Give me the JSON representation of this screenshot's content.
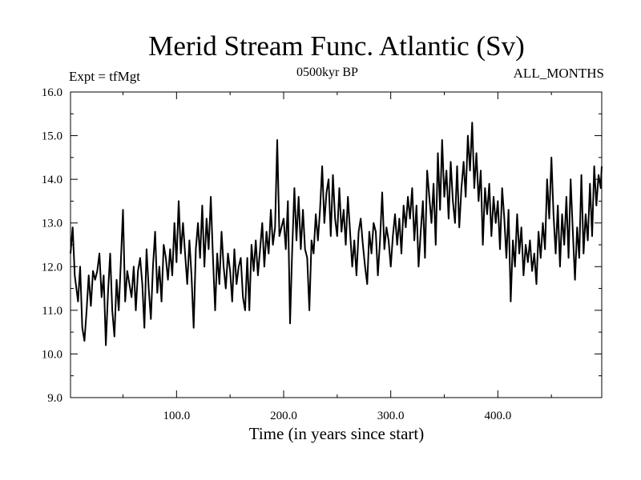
{
  "chart_data": {
    "type": "line",
    "title": "Merid Stream Func. Atlantic (Sv)",
    "subtitle": "0500kyr BP",
    "top_left_label": "Expt = tfMgt",
    "top_right_label": "ALL_MONTHS",
    "xlabel": "Time (in years since start)",
    "ylabel": "",
    "xlim": [
      1,
      497
    ],
    "ylim": [
      9.0,
      16.0
    ],
    "x_ticks": [
      "100.0",
      "200.0",
      "300.0",
      "400.0"
    ],
    "y_ticks": [
      "9.0",
      "10.0",
      "11.0",
      "12.0",
      "13.0",
      "14.0",
      "15.0",
      "16.0"
    ],
    "grid": false,
    "series": [
      {
        "points": [
          [
            1,
            12.3
          ],
          [
            3,
            12.9
          ],
          [
            5,
            11.8
          ],
          [
            8,
            11.2
          ],
          [
            10,
            12.0
          ],
          [
            12,
            10.6
          ],
          [
            14,
            10.3
          ],
          [
            16,
            11.0
          ],
          [
            18,
            11.8
          ],
          [
            20,
            11.1
          ],
          [
            22,
            11.9
          ],
          [
            24,
            11.7
          ],
          [
            26,
            11.9
          ],
          [
            28,
            12.3
          ],
          [
            30,
            11.3
          ],
          [
            32,
            11.8
          ],
          [
            34,
            10.2
          ],
          [
            36,
            11.4
          ],
          [
            38,
            12.3
          ],
          [
            40,
            11.0
          ],
          [
            42,
            10.4
          ],
          [
            44,
            11.7
          ],
          [
            46,
            11.0
          ],
          [
            48,
            12.1
          ],
          [
            50,
            13.3
          ],
          [
            52,
            11.2
          ],
          [
            54,
            11.9
          ],
          [
            56,
            11.6
          ],
          [
            58,
            11.3
          ],
          [
            60,
            12.0
          ],
          [
            62,
            11.0
          ],
          [
            64,
            11.9
          ],
          [
            66,
            12.2
          ],
          [
            68,
            11.6
          ],
          [
            70,
            10.6
          ],
          [
            72,
            12.4
          ],
          [
            74,
            11.5
          ],
          [
            76,
            10.8
          ],
          [
            78,
            12.0
          ],
          [
            80,
            12.8
          ],
          [
            82,
            11.4
          ],
          [
            84,
            12.0
          ],
          [
            86,
            11.2
          ],
          [
            88,
            12.5
          ],
          [
            90,
            12.2
          ],
          [
            92,
            11.7
          ],
          [
            94,
            12.4
          ],
          [
            96,
            11.8
          ],
          [
            98,
            13.0
          ],
          [
            100,
            12.1
          ],
          [
            102,
            13.5
          ],
          [
            104,
            12.3
          ],
          [
            106,
            13.0
          ],
          [
            108,
            12.3
          ],
          [
            110,
            11.6
          ],
          [
            112,
            12.6
          ],
          [
            114,
            11.8
          ],
          [
            116,
            10.6
          ],
          [
            118,
            12.4
          ],
          [
            120,
            13.0
          ],
          [
            122,
            12.2
          ],
          [
            124,
            13.4
          ],
          [
            126,
            12.0
          ],
          [
            128,
            13.1
          ],
          [
            130,
            12.4
          ],
          [
            132,
            13.6
          ],
          [
            134,
            12.2
          ],
          [
            136,
            11.0
          ],
          [
            138,
            12.3
          ],
          [
            140,
            11.6
          ],
          [
            142,
            12.8
          ],
          [
            144,
            12.0
          ],
          [
            146,
            11.5
          ],
          [
            148,
            12.3
          ],
          [
            150,
            11.9
          ],
          [
            152,
            11.2
          ],
          [
            154,
            12.4
          ],
          [
            156,
            11.6
          ],
          [
            158,
            12.0
          ],
          [
            160,
            12.2
          ],
          [
            162,
            11.3
          ],
          [
            164,
            11.0
          ],
          [
            166,
            12.2
          ],
          [
            168,
            11.0
          ],
          [
            170,
            12.5
          ],
          [
            172,
            11.9
          ],
          [
            174,
            12.6
          ],
          [
            176,
            11.8
          ],
          [
            178,
            12.4
          ],
          [
            180,
            13.0
          ],
          [
            182,
            12.0
          ],
          [
            184,
            12.8
          ],
          [
            186,
            12.3
          ],
          [
            188,
            13.3
          ],
          [
            190,
            12.5
          ],
          [
            192,
            12.9
          ],
          [
            194,
            14.9
          ],
          [
            196,
            12.7
          ],
          [
            198,
            12.9
          ],
          [
            200,
            13.1
          ],
          [
            202,
            12.4
          ],
          [
            204,
            13.5
          ],
          [
            206,
            10.7
          ],
          [
            208,
            12.4
          ],
          [
            210,
            13.8
          ],
          [
            212,
            12.6
          ],
          [
            214,
            13.6
          ],
          [
            216,
            12.4
          ],
          [
            218,
            13.3
          ],
          [
            220,
            12.4
          ],
          [
            222,
            12.2
          ],
          [
            224,
            11.0
          ],
          [
            226,
            12.6
          ],
          [
            228,
            12.3
          ],
          [
            230,
            13.2
          ],
          [
            232,
            12.6
          ],
          [
            234,
            13.3
          ],
          [
            236,
            14.3
          ],
          [
            238,
            13.0
          ],
          [
            240,
            13.7
          ],
          [
            242,
            14.0
          ],
          [
            244,
            12.7
          ],
          [
            246,
            14.1
          ],
          [
            248,
            13.1
          ],
          [
            250,
            12.7
          ],
          [
            252,
            13.8
          ],
          [
            254,
            12.8
          ],
          [
            256,
            13.3
          ],
          [
            258,
            12.5
          ],
          [
            260,
            13.6
          ],
          [
            262,
            12.8
          ],
          [
            264,
            12.0
          ],
          [
            266,
            12.6
          ],
          [
            268,
            11.8
          ],
          [
            270,
            12.8
          ],
          [
            272,
            13.1
          ],
          [
            274,
            12.5
          ],
          [
            276,
            12.0
          ],
          [
            278,
            11.6
          ],
          [
            280,
            12.8
          ],
          [
            282,
            12.3
          ],
          [
            284,
            13.0
          ],
          [
            286,
            12.8
          ],
          [
            288,
            11.8
          ],
          [
            290,
            12.6
          ],
          [
            292,
            13.7
          ],
          [
            294,
            12.4
          ],
          [
            296,
            12.9
          ],
          [
            298,
            12.6
          ],
          [
            300,
            12.0
          ],
          [
            302,
            12.7
          ],
          [
            304,
            13.2
          ],
          [
            306,
            12.5
          ],
          [
            308,
            13.1
          ],
          [
            310,
            12.3
          ],
          [
            312,
            13.4
          ],
          [
            314,
            12.9
          ],
          [
            316,
            13.6
          ],
          [
            318,
            13.1
          ],
          [
            320,
            13.8
          ],
          [
            322,
            12.6
          ],
          [
            324,
            13.4
          ],
          [
            326,
            12.0
          ],
          [
            328,
            12.8
          ],
          [
            330,
            13.5
          ],
          [
            332,
            12.2
          ],
          [
            334,
            14.2
          ],
          [
            336,
            13.6
          ],
          [
            338,
            13.0
          ],
          [
            340,
            13.9
          ],
          [
            342,
            12.5
          ],
          [
            344,
            14.6
          ],
          [
            346,
            13.3
          ],
          [
            348,
            14.9
          ],
          [
            350,
            13.6
          ],
          [
            352,
            14.2
          ],
          [
            354,
            13.1
          ],
          [
            356,
            14.4
          ],
          [
            358,
            13.5
          ],
          [
            360,
            13.0
          ],
          [
            362,
            14.3
          ],
          [
            364,
            12.9
          ],
          [
            366,
            13.8
          ],
          [
            368,
            14.4
          ],
          [
            370,
            13.6
          ],
          [
            372,
            15.0
          ],
          [
            374,
            14.2
          ],
          [
            376,
            15.3
          ],
          [
            378,
            13.8
          ],
          [
            380,
            14.6
          ],
          [
            382,
            13.5
          ],
          [
            384,
            14.2
          ],
          [
            386,
            12.5
          ],
          [
            388,
            13.8
          ],
          [
            390,
            13.2
          ],
          [
            392,
            13.9
          ],
          [
            394,
            12.7
          ],
          [
            396,
            13.6
          ],
          [
            398,
            13.0
          ],
          [
            400,
            13.5
          ],
          [
            402,
            12.4
          ],
          [
            404,
            13.8
          ],
          [
            406,
            13.1
          ],
          [
            408,
            12.2
          ],
          [
            410,
            13.3
          ],
          [
            412,
            11.2
          ],
          [
            414,
            12.6
          ],
          [
            416,
            12.0
          ],
          [
            418,
            13.2
          ],
          [
            420,
            12.3
          ],
          [
            422,
            12.9
          ],
          [
            424,
            11.8
          ],
          [
            426,
            12.5
          ],
          [
            428,
            12.1
          ],
          [
            430,
            12.6
          ],
          [
            432,
            11.9
          ],
          [
            434,
            12.3
          ],
          [
            436,
            11.6
          ],
          [
            438,
            12.8
          ],
          [
            440,
            12.2
          ],
          [
            442,
            13.0
          ],
          [
            444,
            12.4
          ],
          [
            446,
            14.0
          ],
          [
            448,
            13.1
          ],
          [
            450,
            14.5
          ],
          [
            452,
            13.2
          ],
          [
            454,
            12.3
          ],
          [
            456,
            13.4
          ],
          [
            458,
            12.0
          ],
          [
            460,
            13.2
          ],
          [
            462,
            12.5
          ],
          [
            464,
            13.6
          ],
          [
            466,
            12.2
          ],
          [
            468,
            14.0
          ],
          [
            470,
            12.8
          ],
          [
            472,
            11.7
          ],
          [
            474,
            12.9
          ],
          [
            476,
            12.2
          ],
          [
            478,
            14.1
          ],
          [
            480,
            12.3
          ],
          [
            482,
            13.2
          ],
          [
            484,
            12.6
          ],
          [
            486,
            13.9
          ],
          [
            488,
            12.7
          ],
          [
            490,
            14.3
          ],
          [
            492,
            13.4
          ],
          [
            494,
            14.1
          ],
          [
            496,
            13.8
          ],
          [
            497,
            14.3
          ]
        ]
      }
    ]
  }
}
